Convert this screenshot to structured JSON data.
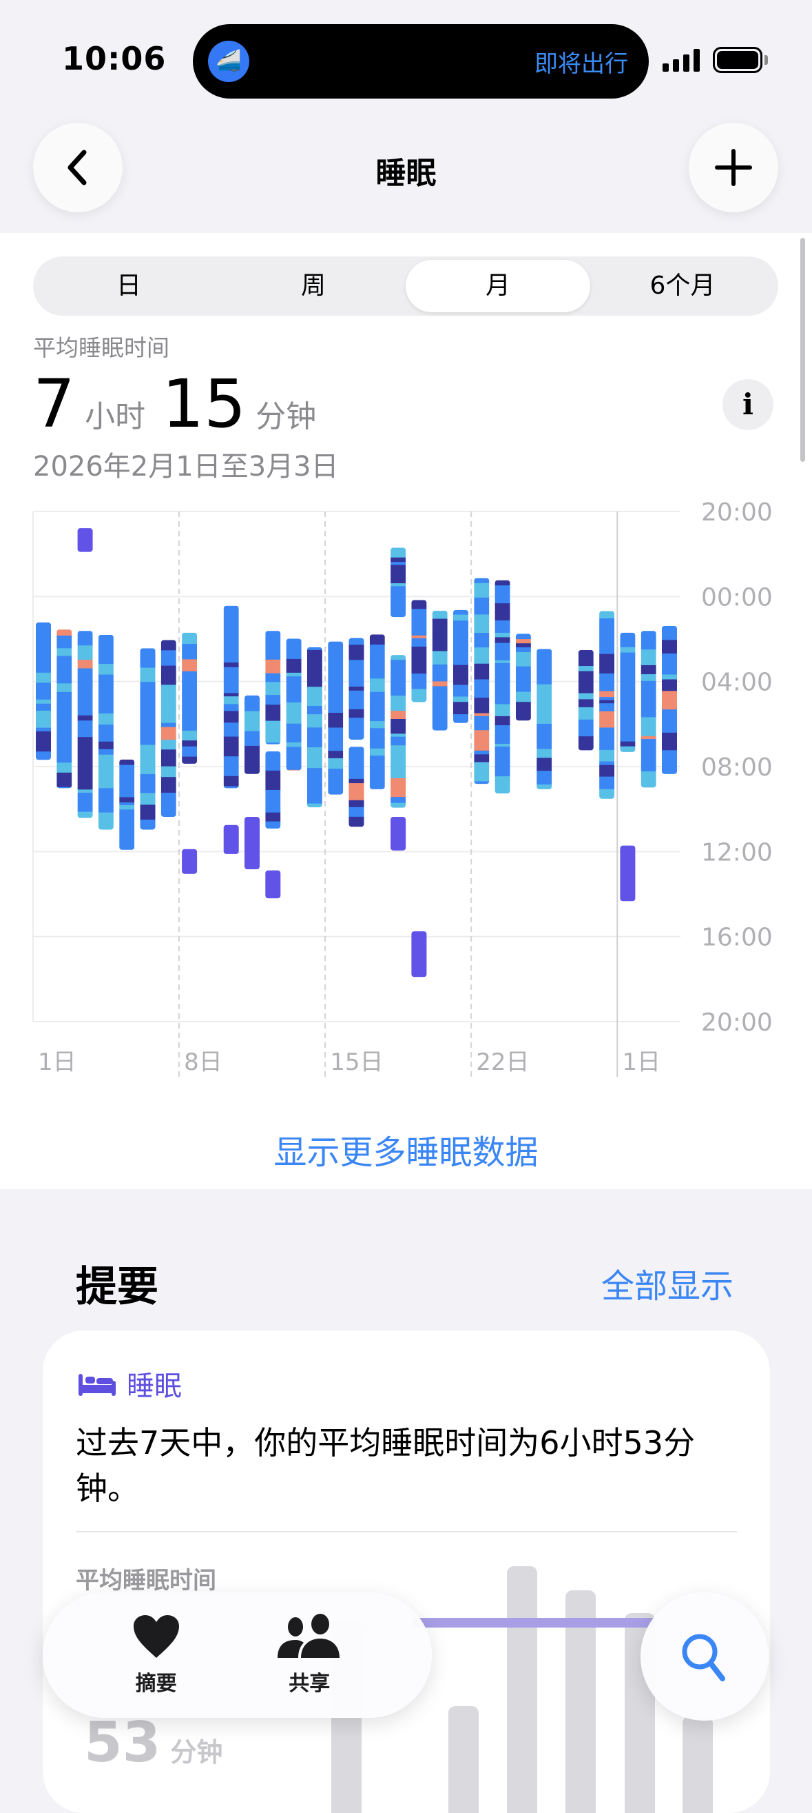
{
  "status": {
    "time": "10:06",
    "island_text": "即将出行",
    "island_icon": "train-icon"
  },
  "nav": {
    "title": "睡眠",
    "back_icon": "chevron-left-icon",
    "add_icon": "plus-icon"
  },
  "segments": [
    {
      "label": "日"
    },
    {
      "label": "周"
    },
    {
      "label": "月",
      "selected": true
    },
    {
      "label": "6个月"
    }
  ],
  "summary_header": {
    "label": "平均睡眠时间",
    "hours": "7",
    "hours_unit": "小时",
    "minutes": "15",
    "minutes_unit": "分钟",
    "date_range": "2026年2月1日至3月3日"
  },
  "more_link": "显示更多睡眠数据",
  "chart_data": {
    "type": "range-bar",
    "y_tick_labels": [
      "20:00",
      "00:00",
      "04:00",
      "08:00",
      "12:00",
      "16:00",
      "20:00"
    ],
    "y_range": [
      "20:00",
      "20:00 (+1)"
    ],
    "x_tick_labels": [
      {
        "day": 1,
        "label": "1日"
      },
      {
        "day": 8,
        "label": "8日"
      },
      {
        "day": 15,
        "label": "15日"
      },
      {
        "day": 22,
        "label": "22日"
      },
      {
        "day": 29,
        "label": "1日"
      }
    ],
    "stage_colors": {
      "deep": "#34349a",
      "core": "#3a86f5",
      "rem": "#58bfe6",
      "awake": "#f08a70",
      "nap": "#6152e8"
    },
    "days": [
      {
        "day": 1,
        "sleep": [
          [
            "01:13",
            "07:41"
          ]
        ]
      },
      {
        "day": 2,
        "sleep": [
          [
            "01:33",
            "09:01"
          ]
        ]
      },
      {
        "day": 3,
        "sleep": [
          [
            "01:37",
            "10:25"
          ]
        ],
        "naps": [
          [
            "20:47",
            "21:54"
          ]
        ]
      },
      {
        "day": 4,
        "sleep": [
          [
            "01:48",
            "10:58"
          ]
        ]
      },
      {
        "day": 5,
        "sleep": [
          [
            "07:40",
            "11:55"
          ]
        ]
      },
      {
        "day": 6,
        "sleep": [
          [
            "02:26",
            "10:58"
          ]
        ]
      },
      {
        "day": 7,
        "sleep": [
          [
            "02:03",
            "10:22"
          ]
        ]
      },
      {
        "day": 8,
        "sleep": [
          [
            "01:42",
            "07:52"
          ]
        ],
        "naps": [
          [
            "11:53",
            "13:03"
          ]
        ]
      },
      {
        "day": 9,
        "sleep": []
      },
      {
        "day": 10,
        "sleep": [
          [
            "00:26",
            "09:01"
          ]
        ],
        "naps": [
          [
            "10:45",
            "12:07"
          ]
        ]
      },
      {
        "day": 11,
        "sleep": [
          [
            "04:39",
            "08:21"
          ]
        ],
        "naps": [
          [
            "10:22",
            "12:50"
          ]
        ]
      },
      {
        "day": 12,
        "sleep": [
          [
            "01:37",
            "06:57"
          ],
          [
            "07:17",
            "10:55"
          ]
        ],
        "naps": [
          [
            "12:53",
            "14:12"
          ]
        ]
      },
      {
        "day": 13,
        "sleep": [
          [
            "01:59",
            "08:11"
          ]
        ]
      },
      {
        "day": 14,
        "sleep": [
          [
            "02:23",
            "09:55"
          ]
        ]
      },
      {
        "day": 15,
        "sleep": [
          [
            "02:07",
            "09:19"
          ]
        ]
      },
      {
        "day": 16,
        "sleep": [
          [
            "01:57",
            "06:44"
          ],
          [
            "07:04",
            "10:50"
          ]
        ]
      },
      {
        "day": 17,
        "sleep": [
          [
            "01:47",
            "09:04"
          ]
        ]
      },
      {
        "day": 18,
        "sleep": [
          [
            "21:42",
            "00:58"
          ],
          [
            "02:45",
            "09:56"
          ]
        ],
        "naps": [
          [
            "10:22",
            "11:57"
          ]
        ]
      },
      {
        "day": 19,
        "sleep": [
          [
            "00:10",
            "04:58"
          ]
        ],
        "naps": [
          [
            "15:45",
            "17:54"
          ]
        ]
      },
      {
        "day": 20,
        "sleep": [
          [
            "00:40",
            "06:18"
          ]
        ]
      },
      {
        "day": 21,
        "sleep": [
          [
            "00:38",
            "05:57"
          ]
        ]
      },
      {
        "day": 22,
        "sleep": [
          [
            "23:08",
            "08:49"
          ]
        ]
      },
      {
        "day": 23,
        "sleep": [
          [
            "23:14",
            "09:16"
          ]
        ]
      },
      {
        "day": 24,
        "sleep": [
          [
            "01:45",
            "05:50"
          ]
        ]
      },
      {
        "day": 25,
        "sleep": [
          [
            "02:28",
            "09:04"
          ]
        ]
      },
      {
        "day": 26,
        "sleep": []
      },
      {
        "day": 27,
        "sleep": [
          [
            "02:31",
            "07:14"
          ]
        ]
      },
      {
        "day": 28,
        "sleep": [
          [
            "00:41",
            "09:31"
          ]
        ]
      },
      {
        "day": 29,
        "sleep": [
          [
            "01:42",
            "07:19"
          ]
        ],
        "naps": [
          [
            "11:43",
            "14:20"
          ]
        ]
      },
      {
        "day": 30,
        "sleep": [
          [
            "01:37",
            "08:59"
          ]
        ]
      },
      {
        "day": 31,
        "sleep": [
          [
            "01:23",
            "08:21"
          ]
        ]
      }
    ]
  },
  "highlights": {
    "title": "提要",
    "show_all": "全部显示",
    "card": {
      "category": "睡眠",
      "text": "过去7天中，你的平均睡眠时间为6小时53分钟。",
      "sub_label": "平均睡眠时间",
      "value": "53",
      "value_unit": "分钟"
    }
  },
  "tabbar": {
    "tabs": [
      {
        "label": "摘要",
        "icon": "heart-icon"
      },
      {
        "label": "共享",
        "icon": "people-icon"
      }
    ],
    "search_icon": "search-icon"
  }
}
